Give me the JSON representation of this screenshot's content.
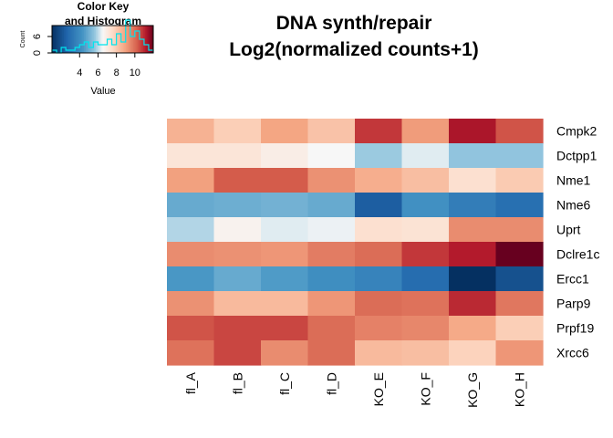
{
  "chart_data": {
    "type": "heatmap",
    "title_lines": [
      "DNA synth/repair",
      "Log2(normalized counts+1)"
    ],
    "columns": [
      "fl_A",
      "fl_B",
      "fl_C",
      "fl_D",
      "KO_E",
      "KO_F",
      "KO_G",
      "KO_H"
    ],
    "rows": [
      "Cmpk2",
      "Dctpp1",
      "Nme1",
      "Nme6",
      "Uprt",
      "Dclre1c",
      "Ercc1",
      "Parp9",
      "Prpf19",
      "Xrcc6"
    ],
    "values": [
      [
        8.6,
        7.9,
        8.9,
        8.2,
        10.8,
        9.1,
        11.3,
        10.4
      ],
      [
        7.2,
        7.2,
        6.9,
        6.5,
        5.7,
        6.3,
        5.6,
        5.6
      ],
      [
        9.0,
        10.3,
        10.3,
        9.3,
        8.7,
        8.3,
        7.4,
        8.0
      ],
      [
        4.9,
        5.0,
        5.1,
        4.9,
        2.4,
        4.2,
        3.5,
        3.0
      ],
      [
        5.9,
        6.7,
        6.3,
        6.4,
        7.4,
        7.3,
        9.4,
        9.4
      ],
      [
        9.4,
        9.3,
        9.2,
        9.7,
        10.0,
        10.8,
        11.2,
        12.0
      ],
      [
        4.4,
        4.9,
        4.5,
        4.1,
        3.7,
        2.9,
        1.0,
        2.0
      ],
      [
        9.3,
        8.4,
        8.4,
        9.2,
        10.0,
        9.9,
        11.0,
        9.8
      ],
      [
        10.4,
        10.6,
        10.6,
        10.0,
        9.6,
        9.5,
        8.8,
        7.9
      ],
      [
        9.9,
        10.6,
        9.4,
        10.0,
        8.4,
        8.3,
        7.8,
        9.2
      ]
    ],
    "color_range": [
      1.0,
      12.0
    ],
    "colors": {
      "low": "#053061",
      "mid": "#f7f7f7",
      "high": "#67001f"
    },
    "color_key": {
      "title_lines": [
        "Color Key",
        "and Histogram"
      ],
      "xlabel": "Value",
      "ylabel": "Count",
      "x_ticks": [
        4,
        6,
        8,
        10
      ],
      "y_ticks": [
        0,
        6
      ],
      "histogram_line_color": "#00e5ee"
    }
  }
}
